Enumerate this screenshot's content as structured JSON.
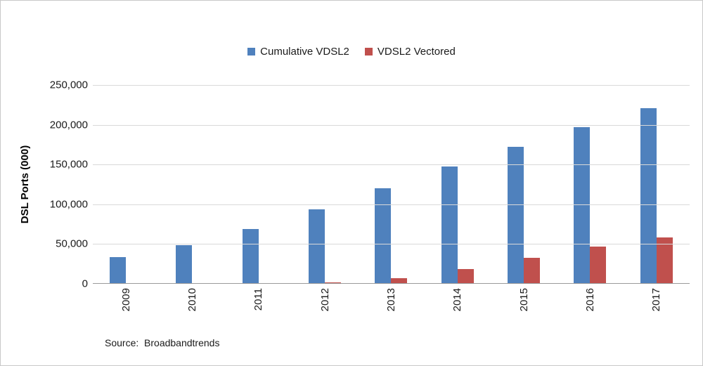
{
  "chart_data": {
    "type": "bar",
    "categories": [
      "2009",
      "2010",
      "2011",
      "2012",
      "2013",
      "2014",
      "2015",
      "2016",
      "2017"
    ],
    "series": [
      {
        "name": "Cumulative VDSL2",
        "color": "#4F81BD",
        "values": [
          33000,
          48000,
          68000,
          93000,
          120000,
          147000,
          172000,
          197000,
          221000
        ]
      },
      {
        "name": "VDSL2 Vectored",
        "color": "#C0504D",
        "values": [
          0,
          0,
          0,
          1000,
          6000,
          18000,
          32000,
          46000,
          58000
        ]
      }
    ],
    "xlabel": "",
    "ylabel": "DSL Ports (000)",
    "ylim": [
      0,
      250000
    ],
    "ytick_interval": 50000,
    "yticks": [
      "250,000",
      "200,000",
      "150,000",
      "100,000",
      "50,000",
      "0"
    ],
    "grid": true,
    "legend_position": "top"
  },
  "source": {
    "label": "Source:  Broadbandtrends"
  }
}
